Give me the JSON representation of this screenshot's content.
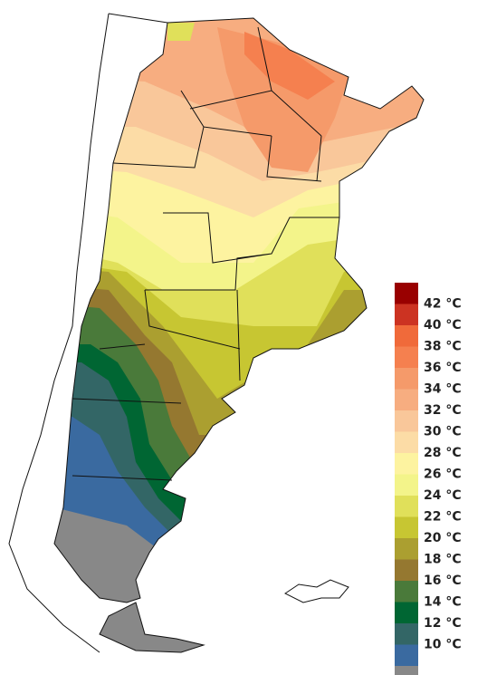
{
  "legend": {
    "labels": [
      "42 °C",
      "40 °C",
      "38 °C",
      "36 °C",
      "34 °C",
      "32 °C",
      "30 °C",
      "28 °C",
      "26 °C",
      "24 °C",
      "22 °C",
      "20 °C",
      "18 °C",
      "16 °C",
      "14 °C",
      "12 °C",
      "10 °C"
    ],
    "colors": [
      "#990000",
      "#cc3322",
      "#f06a3a",
      "#f5804f",
      "#f59a6a",
      "#f7ad80",
      "#f9c79a",
      "#fcdca6",
      "#fdf3a0",
      "#f3f48a",
      "#e0e05a",
      "#c7c632",
      "#ab9f30",
      "#957830",
      "#4a7a3a",
      "#006633",
      "#336666",
      "#3a6aa0",
      "#888888"
    ]
  }
}
